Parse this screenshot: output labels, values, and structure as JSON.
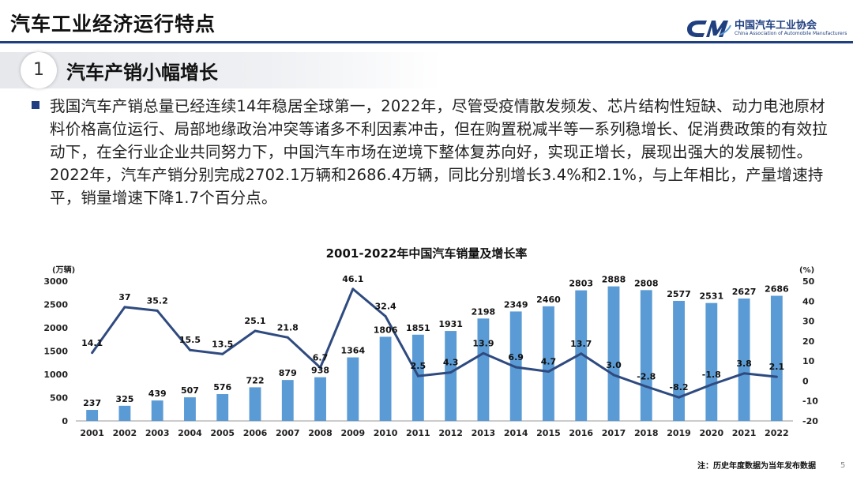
{
  "header": {
    "title": "汽车工业经济运行特点",
    "logo_cn": "中国汽车工业协会",
    "logo_en": "China Association of Automobile Manufacturers"
  },
  "section": {
    "number": "1",
    "title": "汽车产销小幅增长"
  },
  "body": {
    "paragraph": "我国汽车产销总量已经连续14年稳居全球第一，2022年，尽管受疫情散发频发、芯片结构性短缺、动力电池原材料价格高位运行、局部地缘政治冲突等诸多不利因素冲击，但在购置税减半等一系列稳增长、促消费政策的有效拉动下，在全行业企业共同努力下，中国汽车市场在逆境下整体复苏向好，实现正增长，展现出强大的发展韧性。2022年，汽车产销分别完成2702.1万辆和2686.4万辆，同比分别增长3.4%和2.1%，与上年相比，产量增速持平，销量增速下降1.7个百分点。"
  },
  "chart_data": {
    "type": "bar+line",
    "title": "2001-2022年中国汽车销量及增长率",
    "categories": [
      "2001",
      "2002",
      "2003",
      "2004",
      "2005",
      "2006",
      "2007",
      "2008",
      "2009",
      "2010",
      "2011",
      "2012",
      "2013",
      "2014",
      "2015",
      "2016",
      "2017",
      "2018",
      "2019",
      "2020",
      "2021",
      "2022"
    ],
    "series": [
      {
        "type": "bar",
        "axis": "left",
        "values": [
          237,
          325,
          439,
          507,
          576,
          722,
          879,
          938,
          1364,
          1806,
          1851,
          1931,
          2198,
          2349,
          2460,
          2803,
          2888,
          2808,
          2577,
          2531,
          2627,
          2686
        ],
        "labels": [
          "237",
          "325",
          "439",
          "507",
          "576",
          "722",
          "879",
          "938",
          "1364",
          "1806",
          "1851",
          "1931",
          "2198",
          "2349",
          "2460",
          "2803",
          "2888",
          "2808",
          "2577",
          "2531",
          "2627",
          "2686"
        ]
      },
      {
        "type": "line",
        "axis": "right",
        "values": [
          14.1,
          37,
          35.2,
          15.5,
          13.5,
          25.1,
          21.8,
          6.7,
          46.1,
          32.4,
          2.5,
          4.3,
          13.9,
          6.9,
          4.7,
          13.7,
          3.0,
          -2.8,
          -8.2,
          -1.8,
          3.8,
          2.1
        ],
        "labels": [
          "14.1",
          "37",
          "35.2",
          "15.5",
          "13.5",
          "25.1",
          "21.8",
          "6.7",
          "46.1",
          "32.4",
          "2.5",
          "4.3",
          "13.9",
          "6.9",
          "4.7",
          "13.7",
          "3.0",
          "-2.8",
          "-8.2",
          "-1.8",
          "3.8",
          "2.1"
        ]
      }
    ],
    "left_axis": {
      "unit": "(万辆)",
      "min": 0,
      "max": 3000,
      "ticks": [
        0,
        500,
        1000,
        1500,
        2000,
        2500,
        3000
      ]
    },
    "right_axis": {
      "unit": "(%)",
      "min": -20,
      "max": 50,
      "ticks": [
        -20,
        -10,
        0,
        10,
        20,
        30,
        40,
        50
      ]
    },
    "note": "注：历史年度数据为当年发布数据",
    "bar_color": "#5b9bd5",
    "line_color": "#2e4a7f"
  },
  "page_number": "5",
  "colors": {
    "accent": "#1f3f80",
    "bar": "#5b9bd5",
    "line": "#2e4a7f"
  }
}
